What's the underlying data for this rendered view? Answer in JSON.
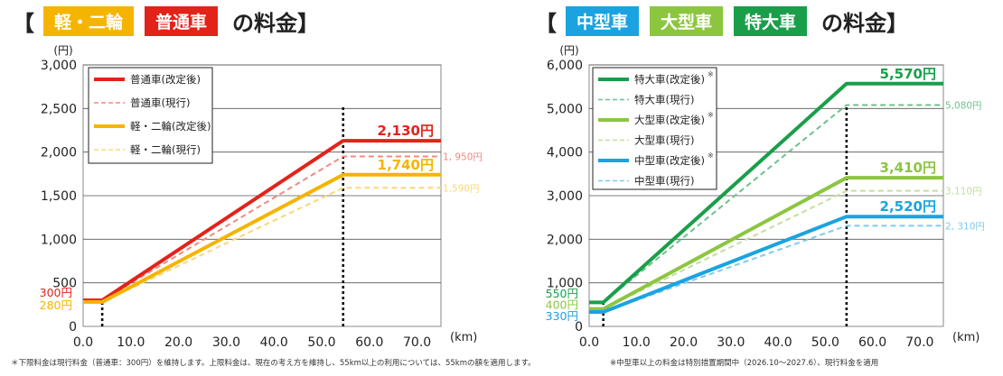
{
  "left": {
    "title": {
      "open": "【",
      "badges": [
        "軽・二輪",
        "普通車"
      ],
      "suffix": "の料金】",
      "badge_colors": [
        "#f5b400",
        "#e2231a"
      ]
    },
    "footnote": "＊下限料金は現行料金（普通車：300円）を維持します。上限料金は、現在の考え方を維持し、55km以上の利用については、55kmの額を適用します。"
  },
  "right": {
    "title": {
      "open": "【",
      "badges": [
        "中型車",
        "大型車",
        "特大車"
      ],
      "suffix": "の料金】",
      "badge_colors": [
        "#1aa3e0",
        "#8cc63f",
        "#1a9e4a"
      ]
    },
    "footnote": "※中型車以上の料金は特別措置期間中（2026.10〜2027.6）、現行料金を適用"
  },
  "chart_data": [
    {
      "type": "line",
      "xlabel": "(km)",
      "ylabel": "(円)",
      "xlim": [
        0,
        75
      ],
      "ylim": [
        0,
        3000
      ],
      "xticks": [
        "0.0",
        "10.0",
        "20.0",
        "30.0",
        "40.0",
        "50.0",
        "60.0",
        "70.0"
      ],
      "yticks": [
        "0",
        "500",
        "1,000",
        "1,500",
        "2,000",
        "2,500",
        "3,000"
      ],
      "vlines": [
        4,
        54.5
      ],
      "legend_position": "top-left",
      "series": [
        {
          "name": "普通車(改定後)",
          "color": "#e2231a",
          "dash": false,
          "points": [
            [
              0,
              300
            ],
            [
              4,
              300
            ],
            [
              54.5,
              2130
            ],
            [
              75,
              2130
            ]
          ],
          "end_label": "2,130円"
        },
        {
          "name": "普通車(現行)",
          "color": "#f08a80",
          "dash": true,
          "points": [
            [
              0,
              300
            ],
            [
              4,
              300
            ],
            [
              54.5,
              1950
            ],
            [
              75,
              1950
            ]
          ],
          "end_label": "1, 950円"
        },
        {
          "name": "軽・二輪(改定後)",
          "color": "#f5b400",
          "dash": false,
          "points": [
            [
              0,
              280
            ],
            [
              4,
              280
            ],
            [
              54.5,
              1740
            ],
            [
              75,
              1740
            ]
          ],
          "end_label": "1,740円"
        },
        {
          "name": "軽・二輪(現行)",
          "color": "#f8d878",
          "dash": true,
          "points": [
            [
              0,
              280
            ],
            [
              4,
              280
            ],
            [
              54.5,
              1590
            ],
            [
              75,
              1590
            ]
          ],
          "end_label": "1,590円"
        }
      ],
      "start_labels": [
        {
          "text": "300円",
          "color": "#e2231a",
          "y": 300
        },
        {
          "text": "280円",
          "color": "#f5b400",
          "y": 280
        }
      ]
    },
    {
      "type": "line",
      "xlabel": "(km)",
      "ylabel": "(円)",
      "xlim": [
        0,
        75
      ],
      "ylim": [
        0,
        6000
      ],
      "xticks": [
        "0.0",
        "10.0",
        "20.0",
        "30.0",
        "40.0",
        "50.0",
        "60.0",
        "70.0"
      ],
      "yticks": [
        "0",
        "1,000",
        "2,000",
        "3,000",
        "4,000",
        "5,000",
        "6,000"
      ],
      "vlines": [
        3,
        54.5
      ],
      "legend_position": "top-left",
      "series": [
        {
          "name": "特大車(改定後)",
          "color": "#1a9e4a",
          "dash": false,
          "points": [
            [
              0,
              550
            ],
            [
              3,
              550
            ],
            [
              54.5,
              5570
            ],
            [
              75,
              5570
            ]
          ],
          "end_label": "5,570円"
        },
        {
          "name": "特大車(現行)",
          "color": "#6cc28a",
          "dash": true,
          "points": [
            [
              0,
              550
            ],
            [
              3,
              550
            ],
            [
              54.5,
              5080
            ],
            [
              75,
              5080
            ]
          ],
          "end_label": "5,080円"
        },
        {
          "name": "大型車(改定後)",
          "color": "#8cc63f",
          "dash": false,
          "points": [
            [
              0,
              400
            ],
            [
              3,
              400
            ],
            [
              54.5,
              3410
            ],
            [
              75,
              3410
            ]
          ],
          "end_label": "3,410円"
        },
        {
          "name": "大型車(現行)",
          "color": "#c2df9a",
          "dash": true,
          "points": [
            [
              0,
              400
            ],
            [
              3,
              400
            ],
            [
              54.5,
              3110
            ],
            [
              75,
              3110
            ]
          ],
          "end_label": "3,110円"
        },
        {
          "name": "中型車(改定後)",
          "color": "#1aa3e0",
          "dash": false,
          "points": [
            [
              0,
              330
            ],
            [
              3,
              330
            ],
            [
              54.5,
              2520
            ],
            [
              75,
              2520
            ]
          ],
          "end_label": "2,520円"
        },
        {
          "name": "中型車(現行)",
          "color": "#7fcbee",
          "dash": true,
          "points": [
            [
              0,
              330
            ],
            [
              3,
              330
            ],
            [
              54.5,
              2310
            ],
            [
              75,
              2310
            ]
          ],
          "end_label": "2, 310円"
        }
      ],
      "legend_mark": "※",
      "start_labels": [
        {
          "text": "550円",
          "color": "#1a9e4a",
          "y": 550
        },
        {
          "text": "400円",
          "color": "#8cc63f",
          "y": 400
        },
        {
          "text": "330円",
          "color": "#1aa3e0",
          "y": 330
        }
      ]
    }
  ]
}
